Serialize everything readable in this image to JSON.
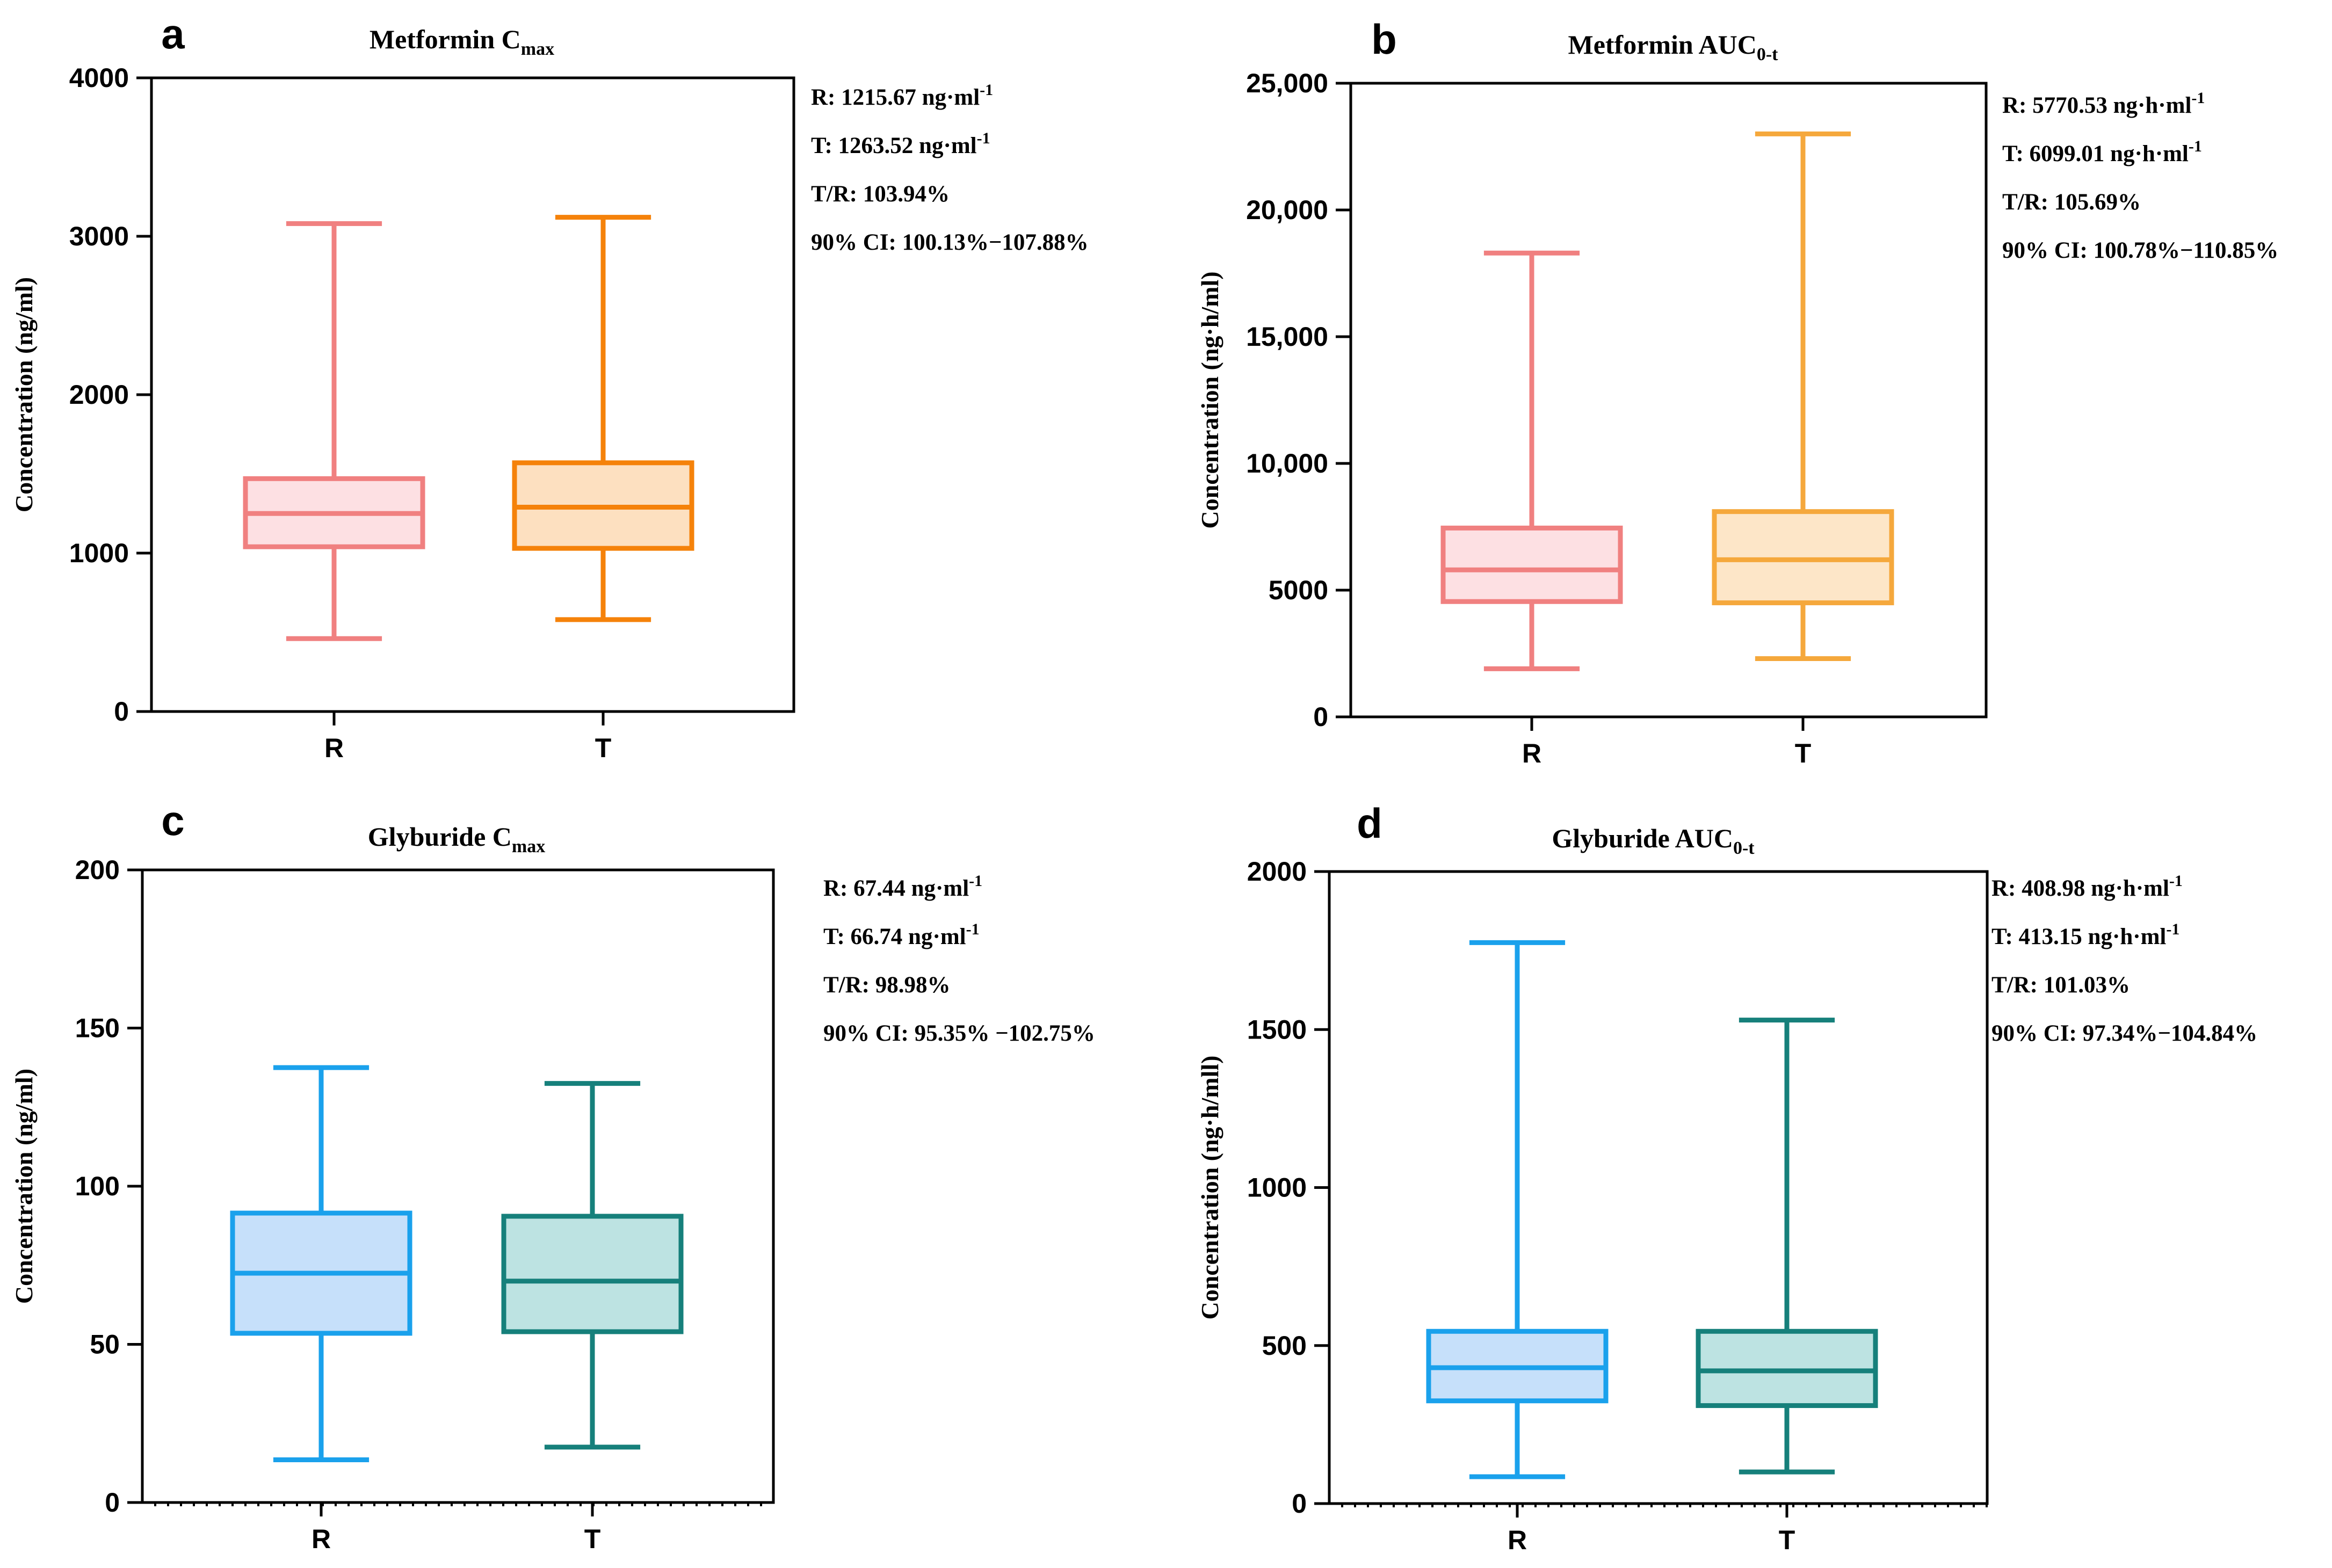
{
  "chart_data": [
    {
      "type": "box",
      "panel": "a",
      "title": "Metformin C",
      "title_sub": "max",
      "ylabel": "Concentration (ng/ml)",
      "ylim": [
        0,
        4000
      ],
      "yticks": [
        "0",
        "1000",
        "2000",
        "3000",
        "4000"
      ],
      "categories": [
        "R",
        "T"
      ],
      "dotted_baseline": false,
      "boxes": [
        {
          "name": "R",
          "min": 460,
          "q1": 1040,
          "median": 1250,
          "q3": 1470,
          "max": 3080,
          "stroke": "#f08080",
          "fill": "#fde0e3"
        },
        {
          "name": "T",
          "min": 580,
          "q1": 1030,
          "median": 1290,
          "q3": 1570,
          "max": 3120,
          "stroke": "#f5820a",
          "fill": "#fde0c0"
        }
      ],
      "stats": [
        {
          "text": "R: 1215.67 ng·ml",
          "sup": "-1"
        },
        {
          "text": "T: 1263.52 ng·ml",
          "sup": "-1"
        },
        {
          "text": "T/R: 103.94%",
          "sup": ""
        },
        {
          "text": "90% CI: 100.13%−107.88%",
          "sup": ""
        }
      ]
    },
    {
      "type": "box",
      "panel": "b",
      "title": "Metformin AUC",
      "title_sub": "0-t",
      "ylabel": "Concentration (ng·h/ml)",
      "ylim": [
        0,
        25000
      ],
      "yticks": [
        "0",
        "5000",
        "10,000",
        "15,000",
        "20,000",
        "25,000"
      ],
      "categories": [
        "R",
        "T"
      ],
      "dotted_baseline": false,
      "boxes": [
        {
          "name": "R",
          "min": 1900,
          "q1": 4550,
          "median": 5800,
          "q3": 7450,
          "max": 18300,
          "stroke": "#f08080",
          "fill": "#fde0e3"
        },
        {
          "name": "T",
          "min": 2300,
          "q1": 4500,
          "median": 6200,
          "q3": 8100,
          "max": 23000,
          "stroke": "#f5a83c",
          "fill": "#fde6c8"
        }
      ],
      "stats": [
        {
          "text": "R: 5770.53 ng·h·ml",
          "sup": "-1"
        },
        {
          "text": "T: 6099.01 ng·h·ml",
          "sup": "-1"
        },
        {
          "text": "T/R: 105.69%",
          "sup": ""
        },
        {
          "text": "90% CI: 100.78%−110.85%",
          "sup": ""
        }
      ]
    },
    {
      "type": "box",
      "panel": "c",
      "title": "Glyburide C",
      "title_sub": "max",
      "ylabel": "Concentration (ng/ml)",
      "ylim": [
        0,
        200
      ],
      "yticks": [
        "0",
        "50",
        "100",
        "150",
        "200"
      ],
      "categories": [
        "R",
        "T"
      ],
      "dotted_baseline": true,
      "boxes": [
        {
          "name": "R",
          "min": 13.5,
          "q1": 53.5,
          "median": 72.5,
          "q3": 91.5,
          "max": 137.5,
          "stroke": "#1aa1ec",
          "fill": "#c6e0fa"
        },
        {
          "name": "T",
          "min": 17.5,
          "q1": 54,
          "median": 70,
          "q3": 90.5,
          "max": 132.5,
          "stroke": "#16807b",
          "fill": "#bde3e2"
        }
      ],
      "stats": [
        {
          "text": "R: 67.44 ng·ml",
          "sup": "-1"
        },
        {
          "text": "T: 66.74 ng·ml",
          "sup": "-1"
        },
        {
          "text": "T/R: 98.98%",
          "sup": ""
        },
        {
          "text": "90% CI: 95.35% −102.75%",
          "sup": ""
        }
      ]
    },
    {
      "type": "box",
      "panel": "d",
      "title": "Glyburide AUC",
      "title_sub": "0-t",
      "ylabel": "Concentration (ng·h/mll)",
      "ylim": [
        0,
        2000
      ],
      "yticks": [
        "0",
        "500",
        "1000",
        "1500",
        "2000"
      ],
      "categories": [
        "R",
        "T"
      ],
      "dotted_baseline": true,
      "boxes": [
        {
          "name": "R",
          "min": 85,
          "q1": 325,
          "median": 430,
          "q3": 545,
          "max": 1775,
          "stroke": "#1aa1ec",
          "fill": "#c6e0fa"
        },
        {
          "name": "T",
          "min": 100,
          "q1": 310,
          "median": 420,
          "q3": 545,
          "max": 1530,
          "stroke": "#16807b",
          "fill": "#bde3e2"
        }
      ],
      "stats": [
        {
          "text": "R: 408.98 ng·h·ml",
          "sup": "-1"
        },
        {
          "text": "T: 413.15 ng·h·ml",
          "sup": "-1"
        },
        {
          "text": "T/R: 101.03%",
          "sup": ""
        },
        {
          "text": "90% CI: 97.34%−104.84%",
          "sup": ""
        }
      ]
    }
  ]
}
